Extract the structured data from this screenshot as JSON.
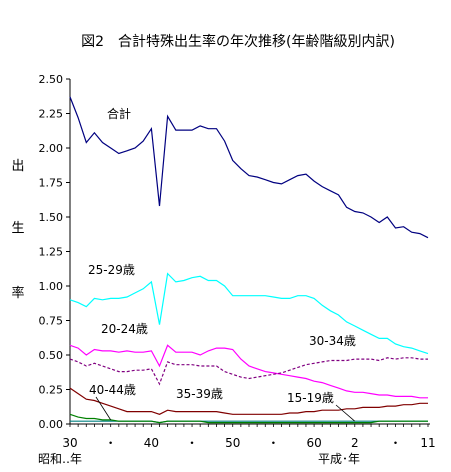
{
  "chart_data": {
    "type": "line",
    "title": "図2　合計特殊出生率の年次推移(年齢階級別内訳)",
    "ylabel_chars": [
      "出",
      "生",
      "率"
    ],
    "ylim": [
      0,
      2.5
    ],
    "yticks": [
      "2.50",
      "2.25",
      "2.00",
      "1.75",
      "1.50",
      "1.25",
      "1.00",
      "0.75",
      "0.50",
      "0.25",
      "0.00"
    ],
    "x_tick_labels": [
      {
        "label": "30",
        "year": 1955
      },
      {
        "label": "・",
        "year": 1960
      },
      {
        "label": "40",
        "year": 1965
      },
      {
        "label": "・",
        "year": 1970
      },
      {
        "label": "50",
        "year": 1975
      },
      {
        "label": "・",
        "year": 1980
      },
      {
        "label": "60",
        "year": 1985
      },
      {
        "label": "2",
        "year": 1990
      },
      {
        "label": "・",
        "year": 1995
      },
      {
        "label": "11",
        "year": 1999
      }
    ],
    "era_labels": {
      "showa": "昭和‥年",
      "heisei": "平成･年"
    },
    "x_start": 1955,
    "series": [
      {
        "name": "合計",
        "color": "#000080",
        "style": "solid",
        "values": [
          2.37,
          2.22,
          2.04,
          2.11,
          2.04,
          2.0,
          1.96,
          1.98,
          2.0,
          2.05,
          2.14,
          1.58,
          2.23,
          2.13,
          2.13,
          2.13,
          2.16,
          2.14,
          2.14,
          2.05,
          1.91,
          1.85,
          1.8,
          1.79,
          1.77,
          1.75,
          1.74,
          1.77,
          1.8,
          1.81,
          1.76,
          1.72,
          1.69,
          1.66,
          1.57,
          1.54,
          1.53,
          1.5,
          1.46,
          1.5,
          1.42,
          1.43,
          1.39,
          1.38,
          1.35
        ]
      },
      {
        "name": "25-29歳",
        "color": "#00ffff",
        "style": "solid",
        "values": [
          0.9,
          0.88,
          0.85,
          0.91,
          0.9,
          0.91,
          0.91,
          0.92,
          0.95,
          0.98,
          1.03,
          0.72,
          1.09,
          1.03,
          1.04,
          1.06,
          1.07,
          1.04,
          1.04,
          1.0,
          0.93,
          0.93,
          0.93,
          0.93,
          0.93,
          0.92,
          0.91,
          0.91,
          0.93,
          0.93,
          0.91,
          0.86,
          0.82,
          0.79,
          0.74,
          0.71,
          0.68,
          0.65,
          0.62,
          0.62,
          0.58,
          0.56,
          0.55,
          0.53,
          0.51
        ]
      },
      {
        "name": "20-24歳",
        "color": "#ff00ff",
        "style": "solid",
        "values": [
          0.57,
          0.55,
          0.5,
          0.54,
          0.53,
          0.53,
          0.52,
          0.53,
          0.52,
          0.52,
          0.53,
          0.42,
          0.57,
          0.52,
          0.52,
          0.52,
          0.5,
          0.53,
          0.55,
          0.55,
          0.54,
          0.47,
          0.42,
          0.4,
          0.38,
          0.37,
          0.36,
          0.35,
          0.34,
          0.33,
          0.31,
          0.3,
          0.28,
          0.26,
          0.24,
          0.23,
          0.23,
          0.22,
          0.21,
          0.21,
          0.2,
          0.2,
          0.2,
          0.19,
          0.19
        ]
      },
      {
        "name": "30-34歳",
        "color": "#800080",
        "style": "dashed",
        "values": [
          0.47,
          0.45,
          0.42,
          0.44,
          0.42,
          0.4,
          0.38,
          0.38,
          0.39,
          0.39,
          0.4,
          0.29,
          0.45,
          0.43,
          0.43,
          0.43,
          0.42,
          0.42,
          0.42,
          0.38,
          0.36,
          0.34,
          0.33,
          0.34,
          0.35,
          0.36,
          0.37,
          0.39,
          0.41,
          0.43,
          0.44,
          0.45,
          0.46,
          0.46,
          0.46,
          0.47,
          0.47,
          0.47,
          0.46,
          0.48,
          0.47,
          0.48,
          0.48,
          0.47,
          0.47
        ]
      },
      {
        "name": "35-39歳",
        "color": "#800000",
        "style": "solid",
        "values": [
          0.26,
          0.22,
          0.18,
          0.17,
          0.15,
          0.13,
          0.11,
          0.09,
          0.09,
          0.09,
          0.09,
          0.07,
          0.1,
          0.09,
          0.09,
          0.09,
          0.09,
          0.09,
          0.09,
          0.08,
          0.07,
          0.07,
          0.07,
          0.07,
          0.07,
          0.07,
          0.07,
          0.08,
          0.08,
          0.09,
          0.09,
          0.1,
          0.1,
          0.1,
          0.11,
          0.11,
          0.12,
          0.12,
          0.12,
          0.13,
          0.13,
          0.14,
          0.14,
          0.15,
          0.15
        ]
      },
      {
        "name": "15-19歳",
        "color": "#008080",
        "style": "solid",
        "values": [
          0.02,
          0.02,
          0.02,
          0.02,
          0.02,
          0.02,
          0.02,
          0.02,
          0.02,
          0.02,
          0.02,
          0.01,
          0.02,
          0.02,
          0.02,
          0.02,
          0.02,
          0.02,
          0.02,
          0.02,
          0.02,
          0.02,
          0.02,
          0.02,
          0.02,
          0.02,
          0.02,
          0.02,
          0.02,
          0.02,
          0.02,
          0.02,
          0.02,
          0.02,
          0.02,
          0.02,
          0.02,
          0.02,
          0.02,
          0.02,
          0.02,
          0.02,
          0.02,
          0.02,
          0.02
        ]
      },
      {
        "name": "40-44歳",
        "color": "#008000",
        "style": "solid",
        "values": [
          0.07,
          0.05,
          0.04,
          0.04,
          0.03,
          0.03,
          0.02,
          0.02,
          0.02,
          0.02,
          0.02,
          0.01,
          0.02,
          0.02,
          0.02,
          0.02,
          0.02,
          0.01,
          0.01,
          0.01,
          0.01,
          0.01,
          0.01,
          0.01,
          0.01,
          0.01,
          0.01,
          0.01,
          0.01,
          0.01,
          0.01,
          0.01,
          0.01,
          0.01,
          0.01,
          0.01,
          0.01,
          0.01,
          0.02,
          0.02,
          0.02,
          0.02,
          0.02,
          0.02,
          0.02
        ]
      }
    ],
    "annotations": [
      {
        "text": "合計",
        "series": "合計"
      },
      {
        "text": "25-29歳",
        "series": "25-29歳"
      },
      {
        "text": "20-24歳",
        "series": "20-24歳"
      },
      {
        "text": "30-34歳",
        "series": "30-34歳"
      },
      {
        "text": "40-44歳",
        "series": "40-44歳"
      },
      {
        "text": "35-39歳",
        "series": "35-39歳"
      },
      {
        "text": "15-19歳",
        "series": "15-19歳"
      }
    ]
  }
}
